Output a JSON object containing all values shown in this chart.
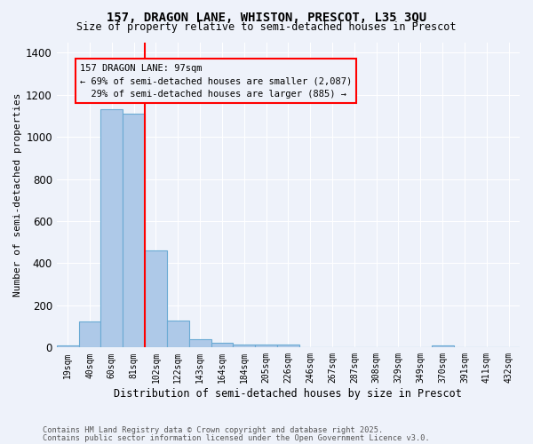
{
  "title1": "157, DRAGON LANE, WHISTON, PRESCOT, L35 3QU",
  "title2": "Size of property relative to semi-detached houses in Prescot",
  "xlabel": "Distribution of semi-detached houses by size in Prescot",
  "ylabel": "Number of semi-detached properties",
  "categories": [
    "19sqm",
    "40sqm",
    "60sqm",
    "81sqm",
    "102sqm",
    "122sqm",
    "143sqm",
    "164sqm",
    "184sqm",
    "205sqm",
    "226sqm",
    "246sqm",
    "267sqm",
    "287sqm",
    "308sqm",
    "329sqm",
    "349sqm",
    "370sqm",
    "391sqm",
    "411sqm",
    "432sqm"
  ],
  "values": [
    8,
    125,
    1130,
    1110,
    460,
    130,
    38,
    22,
    12,
    13,
    13,
    0,
    0,
    0,
    0,
    0,
    0,
    8,
    0,
    0,
    0
  ],
  "bar_color": "#aec9e8",
  "bar_edge_color": "#6aaad4",
  "vline_pos": 3.5,
  "annotation_text": "157 DRAGON LANE: 97sqm\n← 69% of semi-detached houses are smaller (2,087)\n  29% of semi-detached houses are larger (885) →",
  "footnote1": "Contains HM Land Registry data © Crown copyright and database right 2025.",
  "footnote2": "Contains public sector information licensed under the Open Government Licence v3.0.",
  "ylim": [
    0,
    1450
  ],
  "yticks": [
    0,
    200,
    400,
    600,
    800,
    1000,
    1200,
    1400
  ],
  "background_color": "#eef2fa"
}
